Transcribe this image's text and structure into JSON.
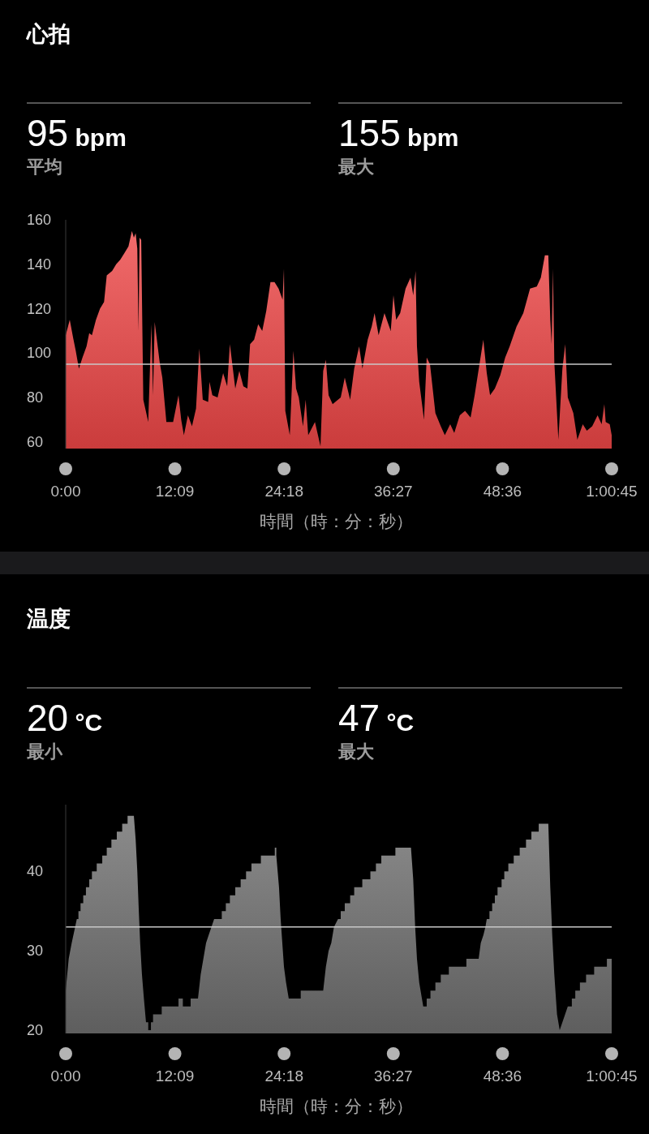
{
  "chart_data": [
    {
      "type": "area",
      "title": "心拍",
      "annotations": [
        "95 bpm",
        "平均",
        "155 bpm",
        "最大"
      ],
      "xlabel": "時間（時：分：秒）",
      "color": "#ee4646",
      "x": [
        0,
        27,
        49,
        67,
        88,
        112,
        139,
        157,
        175,
        202,
        229,
        256,
        274,
        310,
        337,
        364,
        392,
        419,
        442,
        455,
        467,
        478,
        486,
        493,
        504,
        518,
        551,
        572,
        583,
        594,
        627,
        645,
        672,
        717,
        753,
        771,
        789,
        816,
        843,
        870,
        892,
        915,
        951,
        960,
        979,
        1014,
        1051,
        1078,
        1096,
        1132,
        1159,
        1186,
        1213,
        1231,
        1258,
        1285,
        1312,
        1339,
        1367,
        1394,
        1421,
        1448,
        1457,
        1466,
        1496,
        1520,
        1538,
        1556,
        1584,
        1602,
        1619,
        1664,
        1701,
        1719,
        1737,
        1755,
        1782,
        1836,
        1863,
        1899,
        1926,
        1959,
        1981,
        2016,
        2043,
        2062,
        2089,
        2128,
        2170,
        2188,
        2206,
        2233,
        2269,
        2302,
        2320,
        2336,
        2345,
        2360,
        2392,
        2410,
        2432,
        2468,
        2504,
        2531,
        2567,
        2594,
        2631,
        2666,
        2703,
        2730,
        2753,
        2788,
        2811,
        2833,
        2865,
        2901,
        2934,
        2964,
        3010,
        3055,
        3100,
        3145,
        3172,
        3199,
        3222,
        3235,
        3244,
        3253,
        3262,
        3289,
        3316,
        3335,
        3352,
        3389,
        3416,
        3452,
        3479,
        3515,
        3551,
        3578,
        3596,
        3605,
        3632,
        3645
      ],
      "values": [
        108,
        115,
        107,
        101,
        93,
        98,
        103,
        109,
        108,
        115,
        120,
        123,
        135,
        137,
        140,
        142,
        145,
        148,
        155,
        152,
        154,
        147,
        110,
        152,
        151,
        79,
        69,
        113,
        81,
        114,
        96,
        89,
        69,
        69,
        81,
        70,
        63,
        72,
        67,
        75,
        102,
        79,
        78,
        87,
        81,
        80,
        91,
        85,
        104,
        84,
        92,
        85,
        84,
        104,
        106,
        113,
        110,
        119,
        132,
        132,
        129,
        124,
        138,
        74,
        63,
        101,
        84,
        80,
        67,
        79,
        63,
        69,
        58,
        92,
        97,
        81,
        77,
        80,
        89,
        79,
        93,
        103,
        93,
        106,
        112,
        118,
        108,
        118,
        110,
        126,
        115,
        118,
        129,
        134,
        126,
        137,
        103,
        87,
        70,
        98,
        95,
        73,
        67,
        63,
        68,
        64,
        72,
        74,
        71,
        81,
        91,
        106,
        91,
        81,
        84,
        90,
        98,
        103,
        112,
        118,
        129,
        130,
        134,
        144,
        144,
        115,
        104,
        138,
        96,
        61,
        93,
        104,
        80,
        73,
        61,
        68,
        65,
        67,
        72,
        68,
        77,
        69,
        68,
        63
      ],
      "xlim": [
        0,
        3645
      ],
      "xticks": [
        {
          "value": 0,
          "label": "0:00"
        },
        {
          "value": 729,
          "label": "12:09"
        },
        {
          "value": 1458,
          "label": "24:18"
        },
        {
          "value": 2187,
          "label": "36:27"
        },
        {
          "value": 2916,
          "label": "48:36"
        },
        {
          "value": 3645,
          "label": "1:00:45"
        }
      ],
      "ylim": [
        57,
        160
      ],
      "yticks": [
        60,
        80,
        100,
        120,
        140,
        160
      ],
      "ref_lines": [
        {
          "axis": "y",
          "value": 95,
          "color": "#c8c8c8"
        }
      ]
    },
    {
      "type": "area",
      "title": "温度",
      "annotations": [
        "20 °C",
        "最小",
        "47 °C",
        "最大"
      ],
      "xlabel": "時間（時：分：秒）",
      "color": "#6e6e6e",
      "x": [
        0,
        20,
        40,
        63,
        74,
        85,
        85,
        99,
        99,
        117,
        117,
        135,
        135,
        157,
        157,
        175,
        175,
        207,
        207,
        244,
        244,
        274,
        274,
        305,
        305,
        341,
        341,
        377,
        377,
        413,
        413,
        455,
        467,
        478,
        488,
        497,
        509,
        522,
        536,
        551,
        551,
        569,
        569,
        583,
        583,
        641,
        641,
        753,
        753,
        782,
        782,
        834,
        834,
        883,
        901,
        919,
        937,
        955,
        973,
        991,
        1042,
        1042,
        1069,
        1069,
        1096,
        1096,
        1132,
        1132,
        1168,
        1168,
        1204,
        1204,
        1240,
        1240,
        1303,
        1303,
        1396,
        1396,
        1406,
        1406,
        1424,
        1435,
        1446,
        1457,
        1471,
        1489,
        1569,
        1569,
        1719,
        1737,
        1755,
        1773,
        1791,
        1818,
        1836,
        1836,
        1863,
        1863,
        1899,
        1899,
        1926,
        1926,
        1980,
        1980,
        2034,
        2034,
        2071,
        2071,
        2107,
        2107,
        2201,
        2201,
        2305,
        2320,
        2333,
        2345,
        2360,
        2378,
        2387,
        2410,
        2410,
        2435,
        2435,
        2468,
        2468,
        2504,
        2504,
        2558,
        2558,
        2675,
        2675,
        2757,
        2771,
        2789,
        2802,
        2811,
        2829,
        2829,
        2847,
        2847,
        2865,
        2865,
        2883,
        2883,
        2910,
        2910,
        2928,
        2928,
        2955,
        2955,
        2991,
        2991,
        3031,
        3031,
        3073,
        3073,
        3109,
        3109,
        3158,
        3158,
        3222,
        3235,
        3248,
        3262,
        3280,
        3298,
        3316,
        3334,
        3352,
        3379,
        3379,
        3402,
        3402,
        3433,
        3433,
        3474,
        3474,
        3528,
        3528,
        3613,
        3613,
        3645
      ],
      "values": [
        25,
        29,
        31,
        33,
        34,
        34,
        35,
        35,
        36,
        36,
        37,
        37,
        38,
        38,
        39,
        39,
        40,
        40,
        41,
        41,
        42,
        42,
        43,
        43,
        44,
        44,
        45,
        45,
        46,
        46,
        47,
        47,
        44,
        40,
        35,
        31,
        27,
        24,
        21,
        21,
        20,
        20,
        21,
        21,
        22,
        22,
        23,
        23,
        24,
        24,
        23,
        23,
        24,
        24,
        27,
        29,
        31,
        32,
        33,
        34,
        34,
        35,
        35,
        36,
        36,
        37,
        37,
        38,
        38,
        39,
        39,
        40,
        40,
        41,
        41,
        42,
        42,
        43,
        43,
        42,
        38,
        34,
        31,
        28,
        26,
        24,
        24,
        25,
        25,
        28,
        30,
        31,
        33,
        34,
        34,
        35,
        35,
        36,
        36,
        37,
        37,
        38,
        38,
        39,
        39,
        40,
        40,
        41,
        41,
        42,
        42,
        43,
        43,
        39,
        33,
        29,
        26,
        24,
        23,
        23,
        24,
        24,
        25,
        25,
        26,
        26,
        27,
        27,
        28,
        28,
        29,
        29,
        31,
        32,
        33,
        34,
        34,
        35,
        35,
        36,
        36,
        37,
        37,
        38,
        38,
        39,
        39,
        40,
        40,
        41,
        41,
        42,
        42,
        43,
        43,
        44,
        44,
        45,
        45,
        46,
        46,
        38,
        32,
        27,
        22,
        20,
        21,
        22,
        23,
        23,
        24,
        24,
        25,
        25,
        26,
        26,
        27,
        27,
        28,
        28,
        29,
        29
      ],
      "xlim": [
        0,
        3645
      ],
      "xticks": [
        {
          "value": 0,
          "label": "0:00"
        },
        {
          "value": 729,
          "label": "12:09"
        },
        {
          "value": 1458,
          "label": "24:18"
        },
        {
          "value": 2187,
          "label": "36:27"
        },
        {
          "value": 2916,
          "label": "48:36"
        },
        {
          "value": 3645,
          "label": "1:00:45"
        }
      ],
      "ylim": [
        19.6,
        48.4
      ],
      "yticks": [
        20,
        30,
        40
      ],
      "ref_lines": [
        {
          "axis": "y",
          "value": 33,
          "color": "#c8c8c8"
        }
      ]
    }
  ]
}
